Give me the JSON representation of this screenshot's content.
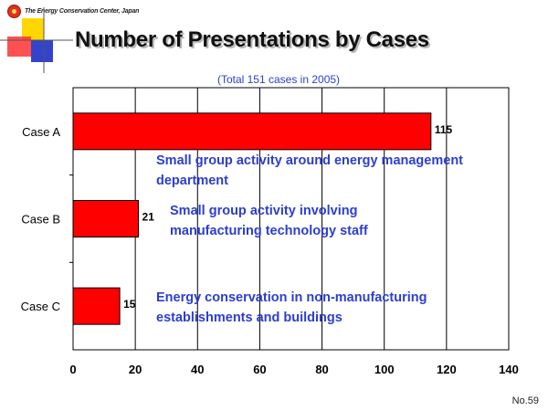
{
  "org_name": "The Energy Conservation Center, Japan",
  "title": "Number of Presentations by Cases",
  "footer": "No.59",
  "colors": {
    "bar": "#ff0000",
    "annotation": "#2c3ecf"
  },
  "chart_data": {
    "type": "bar",
    "orientation": "horizontal",
    "title": "Number of Presentations by Cases",
    "subtitle": "(Total 151 cases in 2005)",
    "categories": [
      "Case A",
      "Case B",
      "Case C"
    ],
    "values": [
      115,
      21,
      15
    ],
    "xlim": [
      0,
      140
    ],
    "xticks": [
      0,
      20,
      40,
      60,
      80,
      100,
      120,
      140
    ],
    "grid": true,
    "annotations": [
      {
        "category": "Case A",
        "lines": [
          "Small group activity around energy management",
          "department"
        ]
      },
      {
        "category": "Case B",
        "lines": [
          "Small group activity involving",
          "manufacturing technology staff"
        ]
      },
      {
        "category": "Case C",
        "lines": [
          "Energy conservation in non-manufacturing",
          "establishments and buildings"
        ]
      }
    ]
  }
}
